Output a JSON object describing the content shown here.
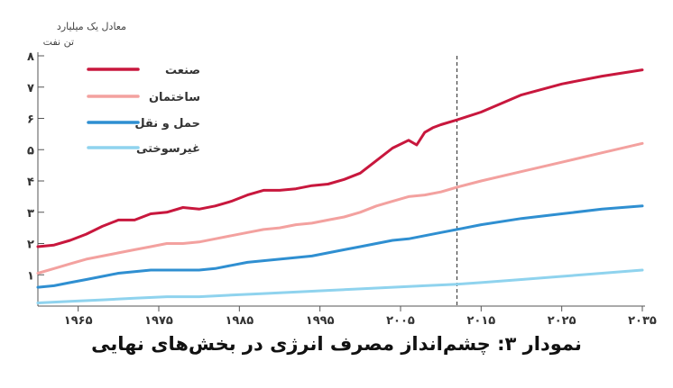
{
  "chart_data": {
    "type": "line",
    "ylabel": [
      "معادل یک میلیارد",
      "تن نفت"
    ],
    "ylim": [
      0,
      8
    ],
    "xlim": [
      1960,
      2035
    ],
    "y_ticks": [
      {
        "value": 1,
        "label": "۱"
      },
      {
        "value": 2,
        "label": "۲"
      },
      {
        "value": 3,
        "label": "۳"
      },
      {
        "value": 4,
        "label": "۴"
      },
      {
        "value": 5,
        "label": "۵"
      },
      {
        "value": 6,
        "label": "۶"
      },
      {
        "value": 7,
        "label": "۷"
      },
      {
        "value": 8,
        "label": "۸"
      }
    ],
    "x_ticks": [
      {
        "value": 1965,
        "label": "۱۹۶۵"
      },
      {
        "value": 1975,
        "label": "۱۹۷۵"
      },
      {
        "value": 1985,
        "label": "۱۹۸۵"
      },
      {
        "value": 1995,
        "label": "۱۹۹۵"
      },
      {
        "value": 2005,
        "label": "۲۰۰۵"
      },
      {
        "value": 2015,
        "label": "۲۰۱۵"
      },
      {
        "value": 2025,
        "label": "۲۰۲۵"
      },
      {
        "value": 2035,
        "label": "۲۰۳۵"
      }
    ],
    "projection_start": 2012,
    "legend_position": "top-left",
    "grid": false,
    "series": [
      {
        "name": "صنعت",
        "color": "#c8173d",
        "x": [
          1960,
          1962,
          1964,
          1966,
          1968,
          1970,
          1972,
          1974,
          1976,
          1978,
          1980,
          1982,
          1984,
          1986,
          1988,
          1990,
          1992,
          1994,
          1996,
          1998,
          2000,
          2002,
          2004,
          2006,
          2007,
          2008,
          2009,
          2010,
          2012,
          2015,
          2020,
          2025,
          2030,
          2035
        ],
        "y": [
          1.9,
          1.95,
          2.1,
          2.3,
          2.55,
          2.75,
          2.75,
          2.95,
          3.0,
          3.15,
          3.1,
          3.2,
          3.35,
          3.55,
          3.7,
          3.7,
          3.75,
          3.85,
          3.9,
          4.05,
          4.25,
          4.65,
          5.05,
          5.3,
          5.15,
          5.55,
          5.7,
          5.8,
          5.95,
          6.2,
          6.75,
          7.1,
          7.35,
          7.55
        ]
      },
      {
        "name": "ساختمان",
        "color": "#f3a19f",
        "x": [
          1960,
          1962,
          1964,
          1966,
          1968,
          1970,
          1972,
          1974,
          1976,
          1978,
          1980,
          1982,
          1984,
          1986,
          1988,
          1990,
          1992,
          1994,
          1996,
          1998,
          2000,
          2002,
          2004,
          2006,
          2008,
          2010,
          2012,
          2015,
          2020,
          2025,
          2030,
          2035
        ],
        "y": [
          1.05,
          1.2,
          1.35,
          1.5,
          1.6,
          1.7,
          1.8,
          1.9,
          2.0,
          2.0,
          2.05,
          2.15,
          2.25,
          2.35,
          2.45,
          2.5,
          2.6,
          2.65,
          2.75,
          2.85,
          3.0,
          3.2,
          3.35,
          3.5,
          3.55,
          3.65,
          3.8,
          4.0,
          4.3,
          4.6,
          4.9,
          5.2
        ]
      },
      {
        "name": "حمل و نقل",
        "color": "#2f8fd1",
        "x": [
          1960,
          1962,
          1964,
          1966,
          1968,
          1970,
          1972,
          1974,
          1976,
          1978,
          1980,
          1982,
          1984,
          1986,
          1988,
          1990,
          1992,
          1994,
          1996,
          1998,
          2000,
          2002,
          2004,
          2006,
          2008,
          2010,
          2012,
          2015,
          2020,
          2025,
          2030,
          2035
        ],
        "y": [
          0.6,
          0.65,
          0.75,
          0.85,
          0.95,
          1.05,
          1.1,
          1.15,
          1.15,
          1.15,
          1.15,
          1.2,
          1.3,
          1.4,
          1.45,
          1.5,
          1.55,
          1.6,
          1.7,
          1.8,
          1.9,
          2.0,
          2.1,
          2.15,
          2.25,
          2.35,
          2.45,
          2.6,
          2.8,
          2.95,
          3.1,
          3.2
        ]
      },
      {
        "name": "غیرسوختی",
        "color": "#8fd3ee",
        "x": [
          1960,
          1964,
          1968,
          1972,
          1976,
          1980,
          1984,
          1988,
          1992,
          1996,
          2000,
          2004,
          2008,
          2012,
          2015,
          2020,
          2025,
          2030,
          2035
        ],
        "y": [
          0.1,
          0.15,
          0.2,
          0.25,
          0.3,
          0.3,
          0.35,
          0.4,
          0.45,
          0.5,
          0.55,
          0.6,
          0.65,
          0.7,
          0.75,
          0.85,
          0.95,
          1.05,
          1.15
        ]
      }
    ]
  },
  "caption": "نمودار ۳: چشم‌انداز مصرف انرژی در بخش‌های نهایی"
}
